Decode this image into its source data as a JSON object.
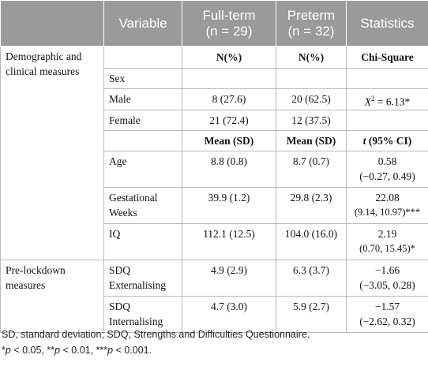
{
  "header": {
    "col1": "",
    "variable": "Variable",
    "fullterm": "Full-term",
    "fullterm_n": "(n = 29)",
    "preterm": "Preterm",
    "preterm_n": "(n = 32)",
    "statistics": "Statistics"
  },
  "sections": {
    "demo_line1": "Demographic and",
    "demo_line2": "clinical measures",
    "pre_line1": "Pre-lockdown",
    "pre_line2": "measures"
  },
  "rows": {
    "r1": {
      "var": "",
      "ft": "N(%)",
      "pt": "N(%)",
      "stat": "Chi-Square"
    },
    "r2": {
      "var": "Sex",
      "ft": "",
      "pt": "",
      "stat": ""
    },
    "r3": {
      "var": "Male",
      "ft": "8 (27.6)",
      "pt": "20 (62.5)",
      "stat_pre": "X",
      "stat_sup": "2",
      "stat_post": " = 6.13*"
    },
    "r4": {
      "var": "Female",
      "ft": "21 (72.4)",
      "pt": "12 (37.5)",
      "stat": ""
    },
    "r5": {
      "var": "",
      "ft": "Mean (SD)",
      "pt": "Mean (SD)",
      "stat_t": "t",
      "stat_rest": " (95% CI)"
    },
    "r6": {
      "var": "Age",
      "ft": "8.8 (0.8)",
      "pt": "8.7 (0.7)",
      "stat1": "0.58",
      "stat2": "(−0.27, 0.49)"
    },
    "r7": {
      "var1": "Gestational",
      "var2": "Weeks",
      "ft": "39.9 (1.2)",
      "pt": "29.8 (2.3)",
      "stat1": "22.08",
      "stat2": "(9.14, 10.97)***"
    },
    "r8": {
      "var": "IQ",
      "ft": "112.1 (12.5)",
      "pt": "104.0 (16.0)",
      "stat1": "2.19",
      "stat2": "(0.70, 15.45)*"
    },
    "r9": {
      "var1": "SDQ",
      "var2": "Externalising",
      "ft": "4.9 (2.9)",
      "pt": "6.3 (3.7)",
      "stat1": "−1.66",
      "stat2": "(−3.05, 0.28)"
    },
    "r10": {
      "var1": "SDQ",
      "var2": "Internalising",
      "ft": "4.7 (3.0)",
      "pt": "5.9 (2.7)",
      "stat1": "−1.57",
      "stat2": "(−2.62, 0.32)"
    }
  },
  "footnotes": {
    "line1": "SD, standard deviation; SDQ, Strengths and Difficulties Questionnaire.",
    "p1": "p",
    "p1_rest": " < 0.05, **",
    "p2": "p",
    "p2_rest": " < 0.01, ***",
    "p3": "p",
    "p3_rest": " < 0.001.",
    "star": "*"
  }
}
